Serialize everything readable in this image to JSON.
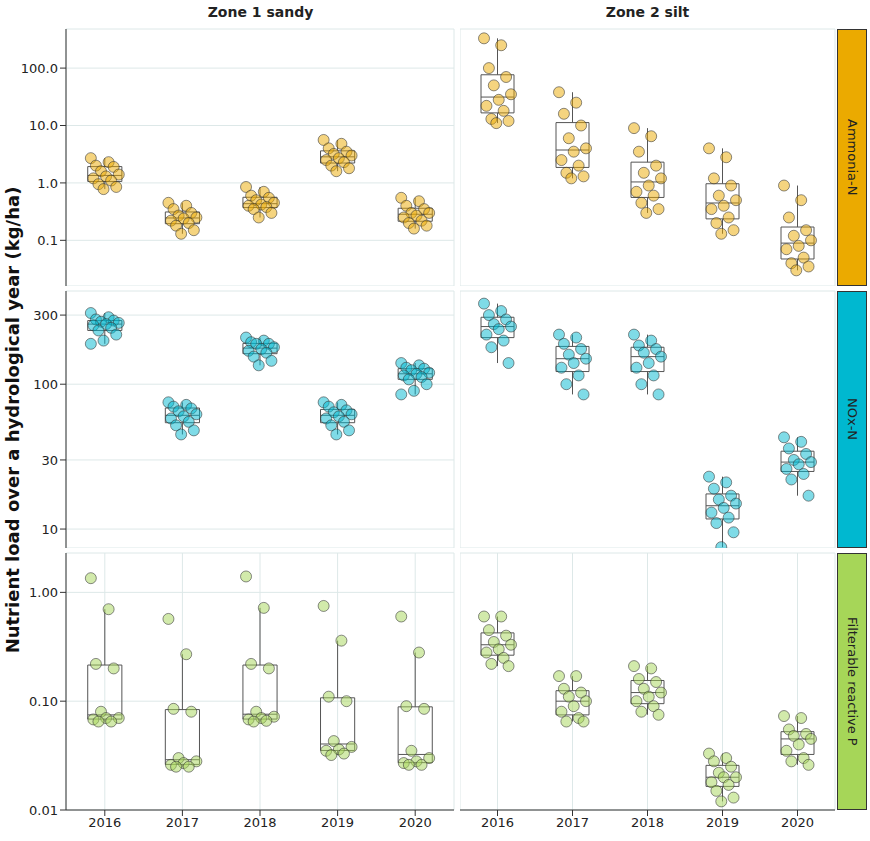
{
  "chart_data": {
    "type": "box_scatter",
    "y_label": "Nutrient load over a hydrological year (kg/ha)",
    "log": "y",
    "grid": true,
    "columns": [
      "Zone 1 sandy",
      "Zone 2 silt"
    ],
    "categories": [
      "2016",
      "2017",
      "2018",
      "2019",
      "2020"
    ],
    "rows": [
      {
        "name": "Ammonia-N",
        "color": "#EBAA00",
        "ylim": [
          0.016,
          480
        ],
        "yticks": [
          0.1,
          {
            "value": 1,
            "label": "1.0"
          },
          {
            "value": 10,
            "label": "10.0"
          },
          {
            "value": 100,
            "label": "100.0"
          }
        ],
        "values": [
          [
            [
              2.7,
              2.3,
              2.0,
              1.9,
              1.6,
              1.4,
              1.3,
              1.2,
              1.1,
              0.95,
              0.85,
              0.78
            ],
            [
              0.45,
              0.4,
              0.35,
              0.3,
              0.27,
              0.25,
              0.24,
              0.22,
              0.2,
              0.18,
              0.15,
              0.13
            ],
            [
              0.85,
              0.7,
              0.6,
              0.55,
              0.5,
              0.45,
              0.42,
              0.4,
              0.38,
              0.35,
              0.3,
              0.25
            ],
            [
              5.6,
              4.8,
              4.0,
              3.5,
              3.2,
              3.0,
              2.7,
              2.5,
              2.3,
              2.0,
              1.8,
              1.6
            ],
            [
              0.55,
              0.48,
              0.4,
              0.35,
              0.3,
              0.3,
              0.27,
              0.25,
              0.22,
              0.2,
              0.18,
              0.16
            ]
          ],
          [
            [
              330,
              250,
              100,
              70,
              50,
              35,
              28,
              22,
              18,
              13,
              12,
              11
            ],
            [
              38,
              25,
              16,
              10,
              6,
              4,
              3.5,
              2.5,
              2,
              1.5,
              1.3,
              1.2
            ],
            [
              9,
              6.5,
              3.5,
              2,
              1.5,
              1.2,
              0.9,
              0.7,
              0.6,
              0.45,
              0.35,
              0.3
            ],
            [
              4,
              2.8,
              1.2,
              0.9,
              0.6,
              0.5,
              0.4,
              0.35,
              0.25,
              0.2,
              0.15,
              0.13
            ],
            [
              0.9,
              0.5,
              0.25,
              0.15,
              0.12,
              0.1,
              0.08,
              0.07,
              0.05,
              0.04,
              0.035,
              0.03
            ]
          ]
        ]
      },
      {
        "name": "NOx-N",
        "color": "#00B8D0",
        "ylim": [
          7.4,
          440
        ],
        "yticks": [
          10,
          30,
          100,
          300
        ],
        "values": [
          [
            [
              310,
              290,
              280,
              275,
              270,
              265,
              260,
              255,
              245,
              235,
              220,
              200,
              190
            ],
            [
              75,
              72,
              70,
              68,
              65,
              62,
              60,
              58,
              55,
              52,
              48,
              45
            ],
            [
              210,
              200,
              195,
              190,
              190,
              180,
              175,
              170,
              165,
              155,
              145,
              135
            ],
            [
              75,
              72,
              70,
              66,
              64,
              62,
              60,
              58,
              55,
              52,
              48,
              45
            ],
            [
              140,
              135,
              130,
              128,
              125,
              120,
              118,
              115,
              112,
              108,
              100,
              90,
              85
            ]
          ],
          [
            [
              360,
              320,
              300,
              280,
              260,
              250,
              240,
              220,
              200,
              180,
              140
            ],
            [
              220,
              210,
              190,
              175,
              160,
              150,
              140,
              130,
              115,
              100,
              85
            ],
            [
              220,
              200,
              185,
              175,
              165,
              155,
              140,
              130,
              115,
              100,
              85
            ],
            [
              23,
              21,
              19,
              17,
              16,
              15,
              14,
              13,
              12,
              11,
              9.5,
              7.5
            ],
            [
              43,
              40,
              36,
              33,
              30,
              29,
              28,
              26,
              24,
              22,
              17
            ]
          ]
        ]
      },
      {
        "name": "Filterable reactive P",
        "color": "#A6D658",
        "ylim": [
          0.01,
          2.3
        ],
        "yticks": [
          0.01,
          {
            "value": 0.1,
            "label": "0.10"
          },
          {
            "value": 1,
            "label": "1.00"
          }
        ],
        "values": [
          [
            [
              1.35,
              0.7,
              0.22,
              0.2,
              0.08,
              0.07,
              0.07,
              0.068,
              0.065,
              0.065
            ],
            [
              0.57,
              0.27,
              0.085,
              0.08,
              0.03,
              0.028,
              0.027,
              0.026,
              0.025,
              0.025
            ],
            [
              1.4,
              0.72,
              0.22,
              0.2,
              0.08,
              0.072,
              0.07,
              0.068,
              0.066,
              0.065
            ],
            [
              0.75,
              0.36,
              0.11,
              0.1,
              0.043,
              0.038,
              0.036,
              0.035,
              0.033,
              0.032
            ],
            [
              0.6,
              0.28,
              0.09,
              0.085,
              0.035,
              0.03,
              0.028,
              0.027,
              0.026,
              0.026
            ]
          ],
          [
            [
              0.6,
              0.6,
              0.45,
              0.4,
              0.35,
              0.33,
              0.3,
              0.28,
              0.25,
              0.22,
              0.21
            ],
            [
              0.17,
              0.17,
              0.13,
              0.12,
              0.11,
              0.1,
              0.09,
              0.08,
              0.07,
              0.065,
              0.065
            ],
            [
              0.21,
              0.2,
              0.16,
              0.15,
              0.13,
              0.12,
              0.11,
              0.1,
              0.09,
              0.08,
              0.075
            ],
            [
              0.033,
              0.03,
              0.028,
              0.025,
              0.022,
              0.02,
              0.02,
              0.018,
              0.017,
              0.015,
              0.013,
              0.012
            ],
            [
              0.073,
              0.07,
              0.055,
              0.05,
              0.048,
              0.045,
              0.04,
              0.035,
              0.03,
              0.028,
              0.026
            ]
          ]
        ]
      }
    ]
  }
}
